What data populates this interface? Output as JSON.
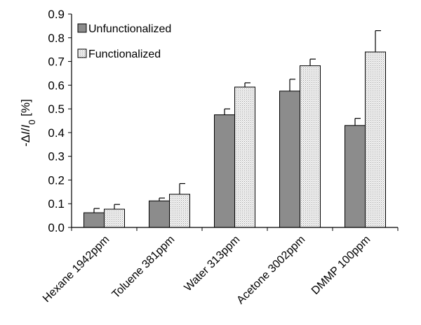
{
  "chart_data": {
    "type": "bar",
    "title": "",
    "xlabel": "",
    "ylabel": {
      "prefix": "-Δ",
      "italic1": "I",
      "slash": "/",
      "italic2": "I",
      "sub": "0",
      "suffix": " [%]"
    },
    "ylim": [
      0,
      0.9
    ],
    "yticks": [
      "0.0",
      "0.1",
      "0.2",
      "0.3",
      "0.4",
      "0.5",
      "0.6",
      "0.7",
      "0.8",
      "0.9"
    ],
    "categories": [
      "Hexane 1942ppm",
      "Toluene 381ppm",
      "Water 313ppm",
      "Acetone 3002ppm",
      "DMMP 100ppm"
    ],
    "series": [
      {
        "name": "Unfunctionalized",
        "color": "#8c8c8c",
        "pattern": "solid",
        "values": [
          0.062,
          0.112,
          0.475,
          0.575,
          0.43
        ],
        "errors": [
          0.018,
          0.012,
          0.025,
          0.05,
          0.03
        ]
      },
      {
        "name": "Functionalized",
        "color": "#f4f4f4",
        "pattern": "dotted",
        "values": [
          0.077,
          0.14,
          0.592,
          0.682,
          0.74
        ],
        "errors": [
          0.02,
          0.045,
          0.018,
          0.028,
          0.09
        ]
      }
    ],
    "legend_position": "top-left",
    "grid": false
  }
}
